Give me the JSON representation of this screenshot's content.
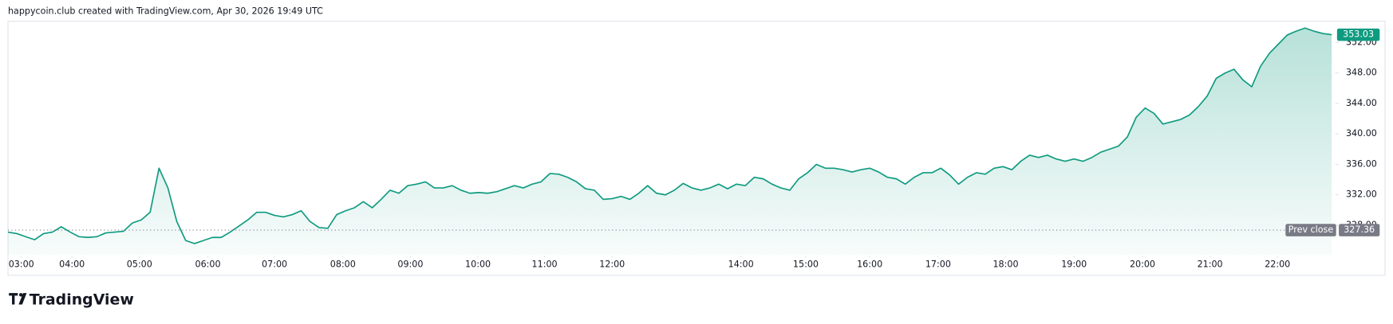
{
  "header": {
    "title": "happycoin.club created with TradingView.com, Apr 30, 2026 19:49 UTC"
  },
  "chart_data": {
    "type": "line",
    "color": "#0f9b80",
    "area_fill": true,
    "values": [
      327.1,
      326.9,
      326.5,
      326.1,
      326.9,
      327.1,
      327.8,
      327.1,
      326.5,
      326.4,
      326.5,
      327.0,
      327.1,
      327.2,
      328.3,
      328.7,
      329.7,
      335.5,
      332.9,
      328.5,
      326.0,
      325.6,
      326.0,
      326.4,
      326.4,
      327.1,
      327.9,
      328.7,
      329.7,
      329.7,
      329.3,
      329.1,
      329.4,
      329.9,
      328.5,
      327.7,
      327.6,
      329.4,
      329.9,
      330.3,
      331.1,
      330.3,
      331.4,
      332.6,
      332.2,
      333.2,
      333.4,
      333.7,
      332.9,
      332.9,
      333.2,
      332.6,
      332.2,
      332.3,
      332.2,
      332.4,
      332.8,
      333.2,
      332.9,
      333.4,
      333.7,
      334.8,
      334.7,
      334.3,
      333.7,
      332.8,
      332.6,
      331.4,
      331.5,
      331.8,
      331.4,
      332.2,
      333.2,
      332.2,
      332.0,
      332.6,
      333.5,
      332.9,
      332.6,
      332.9,
      333.4,
      332.8,
      333.4,
      333.2,
      334.3,
      334.1,
      333.4,
      332.9,
      332.6,
      334.1,
      334.9,
      336.0,
      335.5,
      335.5,
      335.3,
      335.0,
      335.3,
      335.5,
      335.0,
      334.3,
      334.1,
      333.4,
      334.3,
      334.9,
      334.9,
      335.5,
      334.6,
      333.4,
      334.3,
      334.9,
      334.7,
      335.5,
      335.7,
      335.3,
      336.4,
      337.2,
      336.9,
      337.2,
      336.7,
      336.4,
      336.7,
      336.4,
      336.9,
      337.6,
      338.0,
      338.4,
      339.6,
      342.2,
      343.4,
      342.7,
      341.3,
      341.6,
      341.9,
      342.5,
      343.6,
      345.0,
      347.3,
      348.0,
      348.5,
      347.1,
      346.2,
      348.9,
      350.6,
      351.8,
      353.0,
      353.5,
      353.9,
      353.5,
      353.2,
      353.03
    ],
    "prev_close": 327.36,
    "prev_close_label": "Prev close",
    "xlim": [
      0,
      149
    ],
    "xticks": [
      {
        "value": 1.5,
        "label": "03:00"
      },
      {
        "value": 7.2,
        "label": "04:00"
      },
      {
        "value": 14.8,
        "label": "05:00"
      },
      {
        "value": 22.5,
        "label": "06:00"
      },
      {
        "value": 30,
        "label": "07:00"
      },
      {
        "value": 37.7,
        "label": "08:00"
      },
      {
        "value": 45.3,
        "label": "09:00"
      },
      {
        "value": 52.9,
        "label": "10:00"
      },
      {
        "value": 60.4,
        "label": "11:00"
      },
      {
        "value": 68,
        "label": "12:00"
      },
      {
        "value": 82.5,
        "label": "14:00"
      },
      {
        "value": 89.8,
        "label": "15:00"
      },
      {
        "value": 97,
        "label": "16:00"
      },
      {
        "value": 104.7,
        "label": "17:00"
      },
      {
        "value": 112.3,
        "label": "18:00"
      },
      {
        "value": 120,
        "label": "19:00"
      },
      {
        "value": 127.7,
        "label": "20:00"
      },
      {
        "value": 135.3,
        "label": "21:00"
      },
      {
        "value": 142.9,
        "label": "22:00"
      }
    ],
    "ylim": [
      324.1,
      354.8
    ],
    "yticks": [
      {
        "value": 328,
        "label": "328.00"
      },
      {
        "value": 332,
        "label": "332.00"
      },
      {
        "value": 336,
        "label": "336.00"
      },
      {
        "value": 340,
        "label": "340.00"
      },
      {
        "value": 344,
        "label": "344.00"
      },
      {
        "value": 348,
        "label": "348.00"
      },
      {
        "value": 352,
        "label": "352.00"
      }
    ]
  },
  "footer": {
    "logo": "TradingView"
  }
}
